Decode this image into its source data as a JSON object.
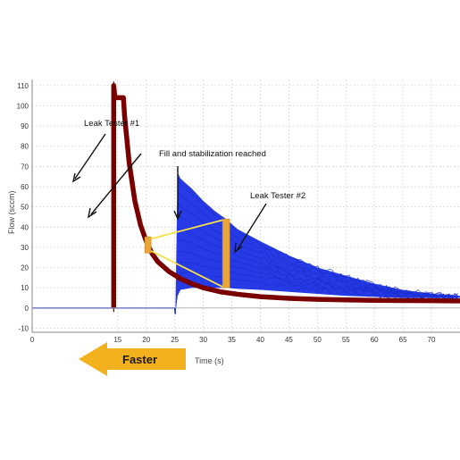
{
  "chart_data": {
    "type": "line",
    "xlabel": "Time (s)",
    "ylabel": "Flow (sccm)",
    "xlim": [
      0,
      75
    ],
    "ylim": [
      -12,
      113
    ],
    "x_ticks": [
      0,
      15,
      20,
      25,
      30,
      35,
      40,
      45,
      50,
      55,
      60,
      65,
      70
    ],
    "y_ticks": [
      -10,
      0,
      10,
      20,
      30,
      40,
      50,
      60,
      70,
      80,
      90,
      100,
      110
    ],
    "grid": true,
    "series": [
      {
        "name": "Leak Tester #1",
        "color": "#7a0000",
        "x": [
          14.3,
          14.3,
          14.5,
          16.0,
          16.2,
          17,
          18,
          19,
          20,
          21,
          22,
          24,
          26,
          28,
          30,
          33,
          36,
          40,
          45,
          50,
          55,
          60,
          65,
          70,
          75
        ],
        "y": [
          0,
          110,
          104,
          104,
          95,
          72,
          53,
          41,
          33,
          27,
          23,
          18,
          14.5,
          12,
          10,
          8,
          6.8,
          5.6,
          4.8,
          4.3,
          4,
          3.8,
          3.7,
          3.6,
          3.5
        ]
      },
      {
        "name": "Leak Tester #2",
        "color": "#0018e0",
        "x": [
          0,
          25,
          25.1,
          25.5,
          26,
          28,
          30,
          32,
          34,
          36,
          40,
          45,
          50,
          55,
          60,
          65,
          70,
          75
        ],
        "y_low": [
          0,
          0,
          -3,
          6,
          9,
          10,
          10,
          10,
          10,
          9.5,
          9,
          8,
          7,
          6,
          5.5,
          5,
          5,
          5
        ],
        "y_high": [
          0,
          0,
          -3,
          67,
          64,
          59,
          53,
          48,
          44,
          39,
          33,
          26,
          20,
          16,
          12,
          9,
          7,
          6
        ]
      }
    ],
    "annotations": [
      "Leak Tester #1",
      "Fill and stabilization reached",
      "Leak Tester #2"
    ],
    "highlight_x": [
      20.3,
      34
    ],
    "arrow_label": "Faster"
  },
  "colors": {
    "tester1": "#7a0000",
    "tester2": "#0018e0",
    "marker": "#e8a53a",
    "connector": "#f6e04a",
    "arrow": "#f4b11e",
    "grid": "#d4d4d4"
  }
}
